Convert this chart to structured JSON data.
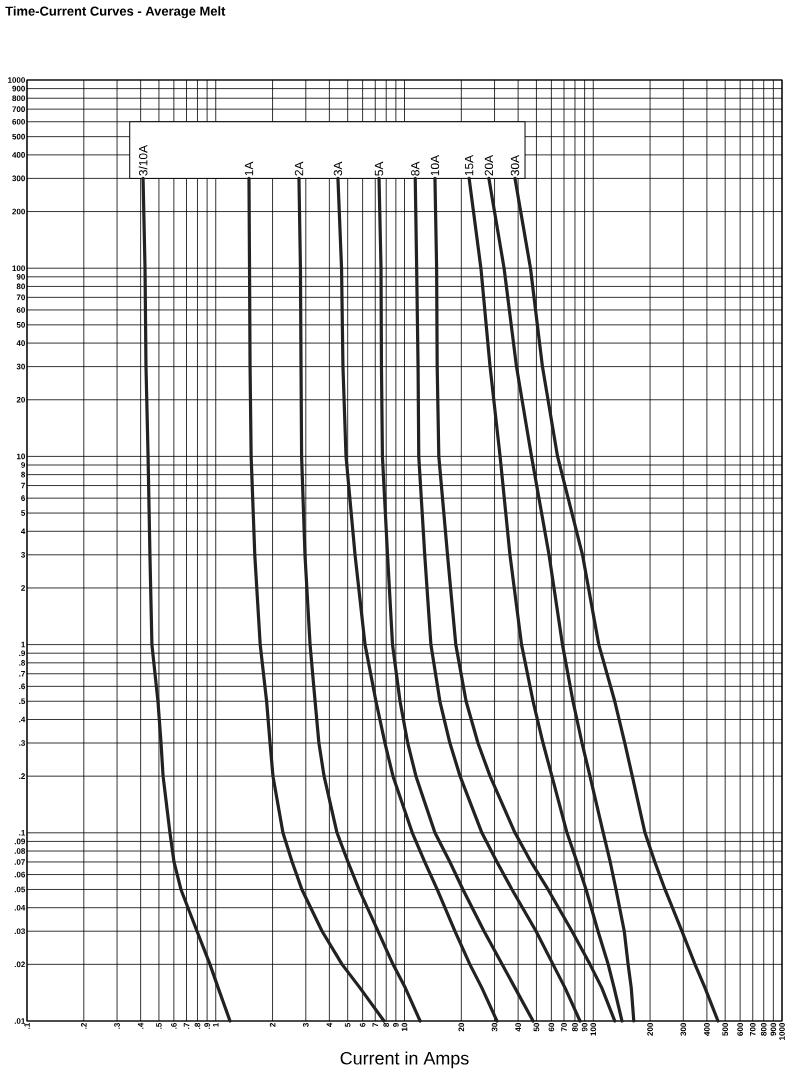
{
  "chart_data": {
    "type": "line",
    "title": "Time-Current Curves - Average Melt",
    "xlabel": "Current in Amps",
    "log": "xy",
    "grid": true,
    "marker": "none",
    "line_style": "solid",
    "xlim": [
      0.1,
      1000
    ],
    "ylim": [
      0.01,
      1000
    ],
    "xticks": [
      {
        "value": 0.1,
        "label": ".1"
      },
      {
        "value": 0.2,
        "label": ".2"
      },
      {
        "value": 0.3,
        "label": ".3"
      },
      {
        "value": 0.4,
        "label": ".4"
      },
      {
        "value": 0.5,
        "label": ".5"
      },
      {
        "value": 0.6,
        "label": ".6"
      },
      {
        "value": 0.7,
        "label": ".7"
      },
      {
        "value": 0.8,
        "label": ".8"
      },
      {
        "value": 0.9,
        "label": ".9"
      },
      1,
      2,
      3,
      4,
      5,
      6,
      7,
      8,
      9,
      10,
      20,
      30,
      40,
      50,
      60,
      70,
      80,
      90,
      100,
      200,
      300,
      400,
      500,
      600,
      700,
      800,
      900,
      1000
    ],
    "yticks": [
      {
        "value": 0.01,
        "label": ".01"
      },
      {
        "value": 0.02,
        "label": ".02"
      },
      {
        "value": 0.03,
        "label": ".03"
      },
      {
        "value": 0.04,
        "label": ".04"
      },
      {
        "value": 0.05,
        "label": ".05"
      },
      {
        "value": 0.06,
        "label": ".06"
      },
      {
        "value": 0.07,
        "label": ".07"
      },
      {
        "value": 0.08,
        "label": ".08"
      },
      {
        "value": 0.09,
        "label": ".09"
      },
      {
        "value": 0.1,
        "label": ".1"
      },
      {
        "value": 0.2,
        "label": ".2"
      },
      {
        "value": 0.3,
        "label": ".3"
      },
      {
        "value": 0.4,
        "label": ".4"
      },
      {
        "value": 0.5,
        "label": ".5"
      },
      {
        "value": 0.6,
        "label": ".6"
      },
      {
        "value": 0.7,
        "label": ".7"
      },
      {
        "value": 0.8,
        "label": ".8"
      },
      {
        "value": 0.9,
        "label": ".9"
      },
      1,
      2,
      3,
      4,
      5,
      6,
      7,
      8,
      9,
      10,
      20,
      30,
      40,
      50,
      60,
      70,
      80,
      90,
      100,
      200,
      300,
      400,
      500,
      600,
      700,
      800,
      900,
      1000
    ],
    "series": [
      {
        "name": "3/10A",
        "color": "#222222",
        "x": [
          0.412,
          0.422,
          0.427,
          0.438,
          0.448,
          0.459,
          0.494,
          0.513,
          0.526,
          0.572,
          0.601,
          0.654,
          0.796,
          0.932,
          1.03,
          1.19
        ],
        "values": [
          300,
          100,
          30,
          10,
          3,
          1,
          0.5,
          0.3,
          0.2,
          0.1,
          0.07,
          0.05,
          0.03,
          0.02,
          0.015,
          0.01
        ]
      },
      {
        "name": "1A",
        "color": "#222222",
        "x": [
          1.5,
          1.51,
          1.52,
          1.54,
          1.61,
          1.72,
          1.86,
          1.94,
          2.01,
          2.27,
          2.54,
          2.86,
          3.66,
          4.67,
          5.81,
          7.79
        ],
        "values": [
          300,
          100,
          30,
          10,
          3,
          1,
          0.5,
          0.3,
          0.2,
          0.1,
          0.07,
          0.05,
          0.03,
          0.02,
          0.015,
          0.01
        ]
      },
      {
        "name": "2A",
        "color": "#222222",
        "x": [
          2.76,
          2.81,
          2.83,
          2.85,
          2.97,
          3.16,
          3.36,
          3.52,
          3.75,
          4.39,
          5.02,
          5.74,
          7.24,
          8.69,
          10.1,
          12.1
        ],
        "values": [
          300,
          100,
          30,
          10,
          3,
          1,
          0.5,
          0.3,
          0.2,
          0.1,
          0.07,
          0.05,
          0.03,
          0.02,
          0.015,
          0.01
        ]
      },
      {
        "name": "3A",
        "color": "#222222",
        "x": [
          4.44,
          4.64,
          4.72,
          4.9,
          5.47,
          6.18,
          7.06,
          7.88,
          8.69,
          11,
          12.8,
          14.9,
          18.5,
          22.2,
          25.7,
          30.9
        ],
        "values": [
          300,
          100,
          30,
          10,
          3,
          1,
          0.5,
          0.3,
          0.2,
          0.1,
          0.07,
          0.05,
          0.03,
          0.02,
          0.015,
          0.01
        ]
      },
      {
        "name": "5A",
        "color": "#222222",
        "x": [
          7.33,
          7.51,
          7.55,
          7.64,
          8.13,
          8.64,
          9.47,
          10.4,
          11.5,
          14.5,
          17.4,
          20.4,
          26.4,
          32.9,
          38.5,
          48
        ],
        "values": [
          300,
          100,
          30,
          10,
          3,
          1,
          0.5,
          0.3,
          0.2,
          0.1,
          0.07,
          0.05,
          0.03,
          0.02,
          0.015,
          0.01
        ]
      },
      {
        "name": "8A",
        "color": "#222222",
        "x": [
          11.4,
          11.6,
          11.8,
          11.9,
          12.8,
          13.8,
          15.4,
          17.4,
          19.7,
          25.7,
          30.9,
          37.1,
          49.8,
          61.2,
          70.9,
          85.1
        ],
        "values": [
          300,
          100,
          30,
          10,
          3,
          1,
          0.5,
          0.3,
          0.2,
          0.1,
          0.07,
          0.05,
          0.03,
          0.02,
          0.015,
          0.01
        ]
      },
      {
        "name": "10A",
        "color": "#222222",
        "x": [
          14.5,
          14.8,
          14.9,
          15.2,
          16.9,
          18.7,
          21.2,
          24.5,
          28.4,
          38.5,
          46.8,
          57.6,
          77.2,
          96.1,
          111,
          130
        ],
        "values": [
          300,
          100,
          30,
          10,
          3,
          1,
          0.5,
          0.3,
          0.2,
          0.1,
          0.07,
          0.05,
          0.03,
          0.02,
          0.015,
          0.01
        ]
      },
      {
        "name": "15A",
        "color": "#222222",
        "x": [
          22,
          25.4,
          28.4,
          32.1,
          36.2,
          41.7,
          48,
          54.2,
          60.4,
          72.6,
          82,
          91.6,
          106,
          120,
          129,
          142
        ],
        "values": [
          300,
          100,
          30,
          10,
          3,
          1,
          0.5,
          0.3,
          0.2,
          0.1,
          0.07,
          0.05,
          0.03,
          0.02,
          0.015,
          0.01
        ]
      },
      {
        "name": "20A",
        "color": "#222222",
        "x": [
          28,
          33.7,
          39.2,
          47.1,
          58.3,
          68.7,
          78.1,
          87.2,
          96.1,
          113,
          123,
          132,
          146,
          153,
          159,
          164
        ],
        "values": [
          300,
          100,
          30,
          10,
          3,
          1,
          0.5,
          0.3,
          0.2,
          0.1,
          0.07,
          0.05,
          0.03,
          0.02,
          0.015,
          0.01
        ]
      },
      {
        "name": "30A",
        "color": "#222222",
        "x": [
          38.5,
          46.5,
          53.8,
          64.7,
          87.7,
          107,
          130,
          147,
          161,
          188,
          212,
          240,
          295,
          346,
          391,
          458
        ],
        "values": [
          300,
          100,
          30,
          10,
          3,
          1,
          0.5,
          0.3,
          0.2,
          0.1,
          0.07,
          0.05,
          0.03,
          0.02,
          0.015,
          0.01
        ]
      }
    ]
  }
}
